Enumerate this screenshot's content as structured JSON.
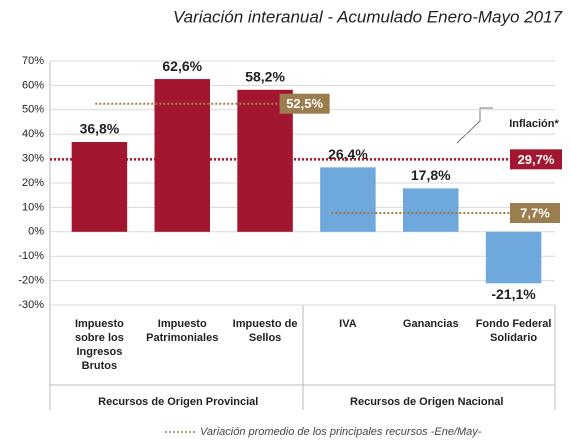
{
  "chart_data": {
    "type": "bar",
    "title": "Variación interanual - Acumulado Enero-Mayo 2017",
    "categories": [
      "Impuesto sobre los Ingresos Brutos",
      "Impuesto Patrimoniales",
      "Impuesto de Sellos",
      "IVA",
      "Ganancias",
      "Fondo Federal Solidario"
    ],
    "values": [
      36.8,
      62.6,
      58.2,
      26.4,
      17.8,
      -21.1
    ],
    "value_labels": [
      "36,8%",
      "62,6%",
      "58,2%",
      "26,4%",
      "17,8%",
      "-21,1%"
    ],
    "colors": [
      "#a3162f",
      "#a3162f",
      "#a3162f",
      "#6fa8dc",
      "#6fa8dc",
      "#6fa8dc"
    ],
    "ylim": [
      -30,
      70
    ],
    "yticks": [
      {
        "value": -30,
        "label": "-30%"
      },
      {
        "value": -20,
        "label": "-20%"
      },
      {
        "value": -10,
        "label": "-10%"
      },
      {
        "value": 0,
        "label": "0%"
      },
      {
        "value": 10,
        "label": "10%"
      },
      {
        "value": 20,
        "label": "20%"
      },
      {
        "value": 30,
        "label": "30%"
      },
      {
        "value": 40,
        "label": "40%"
      },
      {
        "value": 50,
        "label": "50%"
      },
      {
        "value": 60,
        "label": "60%"
      },
      {
        "value": 70,
        "label": "70%"
      }
    ],
    "groups": [
      {
        "name": "Recursos de Origen Provincial",
        "average": 52.5,
        "average_label": "52,5%"
      },
      {
        "name": "Recursos de Origen Nacional",
        "average": 7.7,
        "average_label": "7,7%"
      }
    ],
    "average_color": "#9c7d4e",
    "average_legend": "Variación promedio de los principales recursos -Ene/May-",
    "inflation": {
      "name": "Inflación*",
      "value": 29.7,
      "label": "29,7%",
      "color": "#a3162f"
    }
  }
}
